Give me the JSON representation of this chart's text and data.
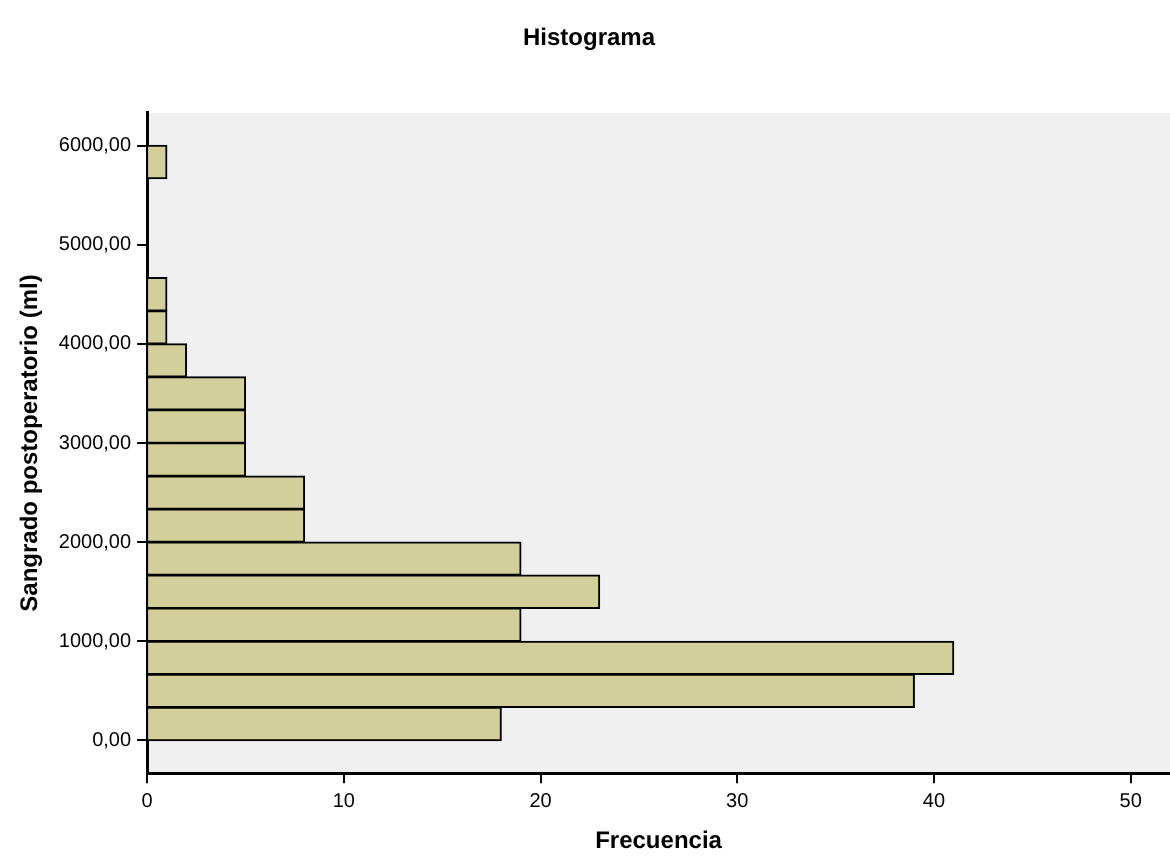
{
  "chart_data": {
    "type": "histogram",
    "orientation": "horizontal",
    "title": "Histograma",
    "xlabel": "Frecuencia",
    "ylabel": "Sangrado postoperatorio (ml)",
    "bins": [
      0,
      333.33,
      666.67,
      1000,
      1333.33,
      1666.67,
      2000,
      2333.33,
      2666.67,
      3000,
      3333.33,
      3666.67,
      4000,
      4333.33,
      4666.67,
      5000,
      5333.33,
      5666.67,
      6000
    ],
    "values": [
      18,
      39,
      41,
      19,
      23,
      19,
      8,
      8,
      5,
      5,
      5,
      2,
      1,
      1,
      0,
      0,
      0,
      1
    ],
    "color": "#d3cf9a",
    "xlim": [
      0,
      52
    ],
    "xticks": [
      0,
      10,
      20,
      30,
      40,
      50
    ],
    "ylim": [
      -330,
      6330
    ],
    "yticks": [
      {
        "value": 0,
        "label": "0,00"
      },
      {
        "value": 1000,
        "label": "1000,00"
      },
      {
        "value": 2000,
        "label": "2000,00"
      },
      {
        "value": 3000,
        "label": "3000,00"
      },
      {
        "value": 4000,
        "label": "4000,00"
      },
      {
        "value": 5000,
        "label": "5000,00"
      },
      {
        "value": 6000,
        "label": "6000,00"
      }
    ],
    "grid": false,
    "legend": false
  }
}
